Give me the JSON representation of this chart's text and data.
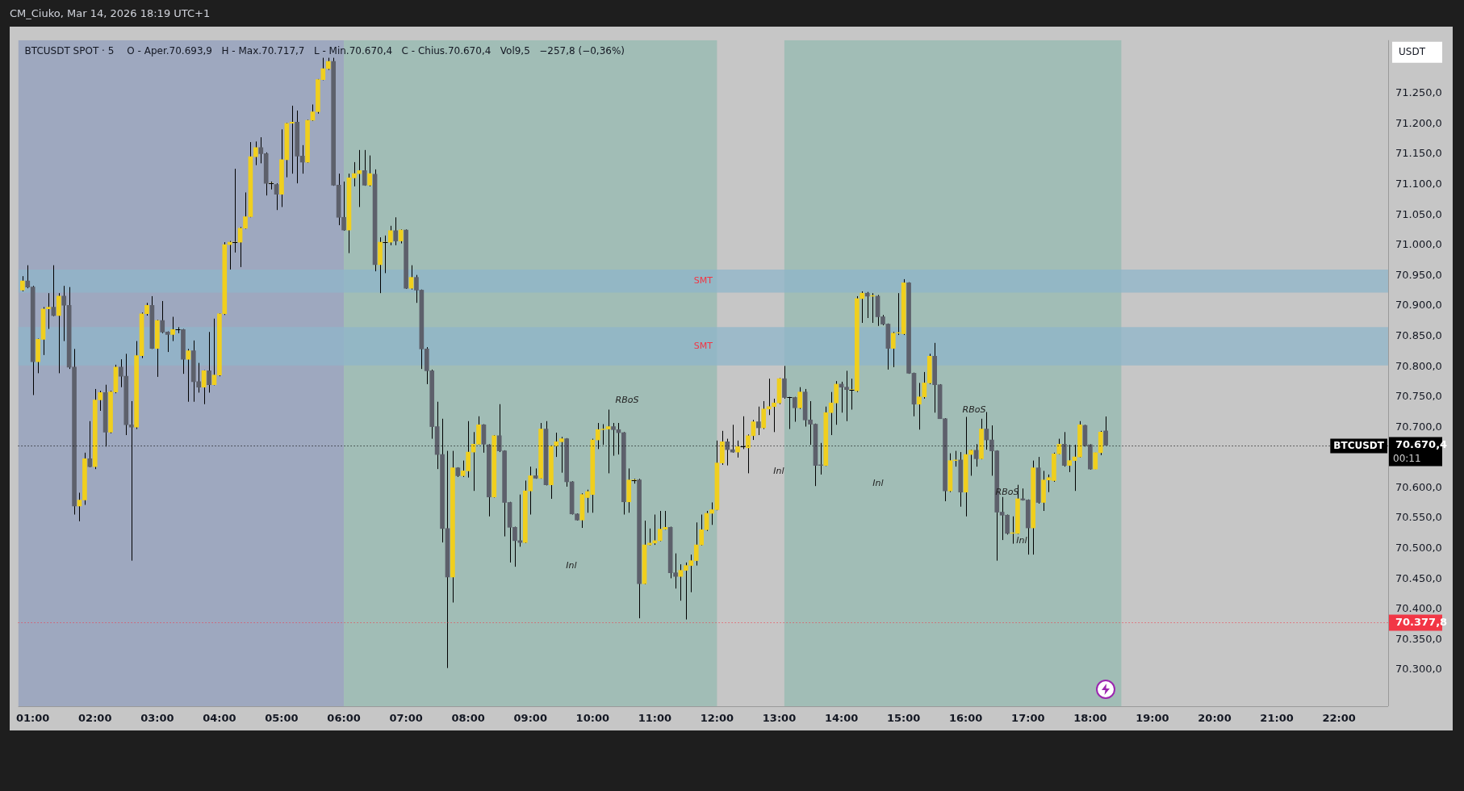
{
  "chart_data": {
    "type": "candlestick",
    "title": "BTCUSDT SPOT · 5",
    "subtitle": "O - Aper.70.693,9   H - Max.70.717,7   L - Min.70.670,4   C - Chius.70.670,4   Vol9,5   −257,8 (−0,36%)",
    "annotations": [
      "CM_Ciuko, Mar 14, 2026 18:19 UTC+1",
      "USDT",
      "00:11",
      "RBoS",
      "RBoS",
      "RBoS",
      "Inl",
      "Inl",
      "Inl",
      "Inl"
    ],
    "colors": [
      "#f0cf1e",
      "#5d606b",
      "#5d606b",
      "#f0cf1e",
      "#f0cf1e",
      "#f0cf1e",
      "#5d606b",
      "#f0cf1e",
      "#5d606b",
      "#5d606b",
      "#5d606b",
      "#f0cf1e",
      "#f0cf1e",
      "#5d606b",
      "#f0cf1e",
      "#f0cf1e",
      "#5d606b",
      "#f0cf1e",
      "#f0cf1e",
      "#5d606b",
      "#5d606b",
      "#5d606b",
      "#f0cf1e",
      "#f0cf1e",
      "#f0cf1e",
      "#5d606b",
      "#f0cf1e",
      "#5d606b",
      "#5d606b",
      "#f0cf1e",
      "#f0cf1e",
      "#5d606b",
      "#f0cf1e",
      "#5d606b",
      "#5d606b",
      "#f0cf1e",
      "#5d606b",
      "#f0cf1e",
      "#f0cf1e",
      "#f0cf1e",
      "#f0cf1e",
      "#f0cf1e",
      "#f0cf1e",
      "#f0cf1e",
      "#f0cf1e",
      "#f0cf1e",
      "#5d606b",
      "#5d606b",
      "#f0cf1e",
      "#5d606b",
      "#f0cf1e",
      "#f0cf1e",
      "#f0cf1e",
      "#5d606b",
      "#5d606b",
      "#f0cf1e",
      "#f0cf1e",
      "#f0cf1e",
      "#f0cf1e",
      "#f0cf1e",
      "#5d606b",
      "#5d606b",
      "#5d606b",
      "#f0cf1e",
      "#f0cf1e",
      "#f0cf1e",
      "#5d606b",
      "#f0cf1e",
      "#5d606b",
      "#f0cf1e",
      "#f0cf1e",
      "#f0cf1e",
      "#5d606b",
      "#f0cf1e",
      "#5d606b",
      "#f0cf1e",
      "#5d606b",
      "#5d606b",
      "#5d606b",
      "#5d606b",
      "#5d606b",
      "#5d606b",
      "#5d606b",
      "#f0cf1e",
      "#5d606b",
      "#f0cf1e",
      "#f0cf1e",
      "#f0cf1e",
      "#f0cf1e",
      "#5d606b",
      "#5d606b",
      "#f0cf1e",
      "#5d606b",
      "#5d606b",
      "#5d606b",
      "#5d606b",
      "#5d606b",
      "#f0cf1e",
      "#f0cf1e",
      "#5d606b",
      "#f0cf1e",
      "#5d606b",
      "#f0cf1e",
      "#f0cf1e",
      "#f0cf1e",
      "#5d606b",
      "#5d606b",
      "#5d606b",
      "#f0cf1e",
      "#f0cf1e",
      "#f0cf1e",
      "#f0cf1e",
      "#f0cf1e",
      "#f0cf1e",
      "#5d606b",
      "#5d606b",
      "#5d606b",
      "#f0cf1e",
      "#f0cf1e",
      "#5d606b",
      "#f0cf1e",
      "#f0cf1e",
      "#f0cf1e",
      "#f0cf1e",
      "#f0cf1e",
      "#5d606b",
      "#5d606b",
      "#f0cf1e",
      "#f0cf1e",
      "#f0cf1e",
      "#f0cf1e",
      "#f0cf1e",
      "#f0cf1e",
      "#f0cf1e",
      "#f0cf1e",
      "#f0cf1e",
      "#5d606b",
      "#5d606b",
      "#f0cf1e",
      "#f0cf1e",
      "#f0cf1e",
      "#f0cf1e",
      "#5d606b",
      "#f0cf1e",
      "#f0cf1e",
      "#f0cf1e",
      "#f0cf1e",
      "#5d606b",
      "#f0cf1e",
      "#5d606b",
      "#f0cf1e",
      "#5d606b",
      "#5d606b",
      "#5d606b",
      "#5d606b",
      "#f0cf1e",
      "#f0cf1e",
      "#f0cf1e",
      "#5d606b",
      "#5d606b",
      "#f0cf1e",
      "#f0cf1e",
      "#f0cf1e",
      "#5d606b",
      "#f0cf1e",
      "#5d606b",
      "#5d606b",
      "#5d606b",
      "#f0cf1e",
      "#f0cf1e",
      "#f0cf1e",
      "#5d606b",
      "#5d606b",
      "#f0cf1e",
      "#f0cf1e",
      "#f0cf1e",
      "#5d606b",
      "#5d606b",
      "#5d606b",
      "#f0cf1e",
      "#f0cf1e",
      "#5d606b",
      "#f0cf1e",
      "#f0cf1e",
      "#5d606b",
      "#f0cf1e",
      "#5d606b",
      "#5d606b",
      "#5d606b",
      "#5d606b",
      "#5d606b",
      "#f0cf1e",
      "#f0cf1e",
      "#5d606b",
      "#5d606b",
      "#f0cf1e",
      "#5d606b",
      "#f0cf1e",
      "#f0cf1e",
      "#f0cf1e",
      "#f0cf1e",
      "#5d606b",
      "#f0cf1e",
      "#f0cf1e",
      "#f0cf1e",
      "#5d606b",
      "#5d606b",
      "#f0cf1e",
      "#f0cf1e",
      "#5d606b"
    ],
    "x": [
      0.8333,
      0.9167,
      1,
      1.0833,
      1.1667,
      1.25,
      1.3333,
      1.4167,
      1.5,
      1.5833,
      1.6667,
      1.75,
      1.8333,
      1.9167,
      2,
      2.0833,
      2.1667,
      2.25,
      2.3333,
      2.4167,
      2.5,
      2.5833,
      2.6667,
      2.75,
      2.8333,
      2.9167,
      3,
      3.0833,
      3.1667,
      3.25,
      3.3333,
      3.4167,
      3.5,
      3.5833,
      3.6667,
      3.75,
      3.8333,
      3.9167,
      4,
      4.0833,
      4.1667,
      4.25,
      4.3333,
      4.4167,
      4.5,
      4.5833,
      4.6667,
      4.75,
      4.8333,
      4.9167,
      5,
      5.0833,
      5.1667,
      5.25,
      5.3333,
      5.4167,
      5.5,
      5.5833,
      5.6667,
      5.75,
      5.8333,
      5.9167,
      6,
      6.0833,
      6.1667,
      6.25,
      6.3333,
      6.4167,
      6.5,
      6.5833,
      6.6667,
      6.75,
      6.8333,
      6.9167,
      7,
      7.0833,
      7.1667,
      7.25,
      7.3333,
      7.4167,
      7.5,
      7.5833,
      7.6667,
      7.75,
      7.8333,
      7.9167,
      8,
      8.0833,
      8.1667,
      8.25,
      8.3333,
      8.4167,
      8.5,
      8.5833,
      8.6667,
      8.75,
      8.8333,
      8.9167,
      9,
      9.0833,
      9.1667,
      9.25,
      9.3333,
      9.4167,
      9.5,
      9.5833,
      9.6667,
      9.75,
      9.8333,
      9.9167,
      10,
      10.0833,
      10.1667,
      10.25,
      10.3333,
      10.4167,
      10.5,
      10.5833,
      10.6667,
      10.75,
      10.8333,
      10.9167,
      11,
      11.0833,
      11.1667,
      11.25,
      11.3333,
      11.4167,
      11.5,
      11.5833,
      11.6667,
      11.75,
      11.8333,
      11.9167,
      12,
      12.0833,
      12.1667,
      12.25,
      12.3333,
      12.4167,
      12.5,
      12.5833,
      12.6667,
      12.75,
      12.8333,
      12.9167,
      13,
      13.0833,
      13.1667,
      13.25,
      13.3333,
      13.4167,
      13.5,
      13.5833,
      13.6667,
      13.75,
      13.8333,
      13.9167,
      14,
      14.0833,
      14.1667,
      14.25,
      14.3333,
      14.4167,
      14.5,
      14.5833,
      14.6667,
      14.75,
      14.8333,
      14.9167,
      15,
      15.0833,
      15.1667,
      15.25,
      15.3333,
      15.4167,
      15.5,
      15.5833,
      15.6667,
      15.75,
      15.8333,
      15.9167,
      16,
      16.0833,
      16.1667,
      16.25,
      16.3333,
      16.4167,
      16.5,
      16.5833,
      16.6667,
      16.75,
      16.8333,
      16.9167,
      17,
      17.0833,
      17.1667,
      17.25,
      17.3333,
      17.4167,
      17.5,
      17.5833,
      17.6667,
      17.75,
      17.8333,
      17.9167,
      18,
      18.0833,
      18.1667,
      18.25
    ],
    "ohlc": [
      [
        70926,
        70949,
        70924,
        70941
      ],
      [
        70941,
        70967,
        70929,
        70931
      ],
      [
        70931,
        70933,
        70753,
        70808
      ],
      [
        70808,
        70846,
        70789,
        70845
      ],
      [
        70845,
        70898,
        70819,
        70895
      ],
      [
        70895,
        70921,
        70862,
        70898
      ],
      [
        70898,
        70967,
        70883,
        70884
      ],
      [
        70884,
        70921,
        70789,
        70916
      ],
      [
        70916,
        70933,
        70842,
        70901
      ],
      [
        70901,
        70931,
        70796,
        70799
      ],
      [
        70799,
        70829,
        70556,
        70570
      ],
      [
        70570,
        70592,
        70545,
        70580
      ],
      [
        70580,
        70658,
        70572,
        70648
      ],
      [
        70648,
        70710,
        70634,
        70635
      ],
      [
        70635,
        70763,
        70631,
        70745
      ],
      [
        70745,
        70760,
        70727,
        70757
      ],
      [
        70757,
        70770,
        70668,
        70692
      ],
      [
        70692,
        70760,
        70690,
        70758
      ],
      [
        70758,
        70803,
        70756,
        70799
      ],
      [
        70799,
        70812,
        70766,
        70784
      ],
      [
        70784,
        70821,
        70687,
        70704
      ],
      [
        70704,
        70743,
        70480,
        70700
      ],
      [
        70700,
        70842,
        70697,
        70818
      ],
      [
        70818,
        70889,
        70814,
        70887
      ],
      [
        70887,
        70905,
        70884,
        70901
      ],
      [
        70901,
        70916,
        70829,
        70830
      ],
      [
        70830,
        70877,
        70783,
        70876
      ],
      [
        70876,
        70908,
        70855,
        70857
      ],
      [
        70857,
        70858,
        70824,
        70853
      ],
      [
        70853,
        70882,
        70842,
        70861
      ],
      [
        70861,
        70865,
        70855,
        70861
      ],
      [
        70861,
        70862,
        70788,
        70812
      ],
      [
        70812,
        70829,
        70742,
        70826
      ],
      [
        70826,
        70843,
        70742,
        70775
      ],
      [
        70775,
        70806,
        70757,
        70766
      ],
      [
        70766,
        70794,
        70738,
        70793
      ],
      [
        70793,
        70857,
        70757,
        70770
      ],
      [
        70770,
        70879,
        70769,
        70786
      ],
      [
        70786,
        70888,
        70784,
        70887
      ],
      [
        70887,
        71005,
        70885,
        71001
      ],
      [
        71001,
        71007,
        70960,
        71005
      ],
      [
        71005,
        71126,
        70988,
        71005
      ],
      [
        71005,
        71030,
        70964,
        71028
      ],
      [
        71028,
        71087,
        71027,
        71047
      ],
      [
        71047,
        71170,
        71046,
        71146
      ],
      [
        71146,
        71171,
        71132,
        71161
      ],
      [
        71161,
        71178,
        71135,
        71151
      ],
      [
        71151,
        71153,
        71082,
        71102
      ],
      [
        71102,
        71105,
        71092,
        71102
      ],
      [
        71100,
        71102,
        71058,
        71084
      ],
      [
        71084,
        71191,
        71063,
        71141
      ],
      [
        71141,
        71202,
        71112,
        71201
      ],
      [
        71201,
        71230,
        71118,
        71203
      ],
      [
        71203,
        71222,
        71102,
        71147
      ],
      [
        71147,
        71165,
        71118,
        71137
      ],
      [
        71137,
        71207,
        71136,
        71206
      ],
      [
        71206,
        71232,
        71205,
        71220
      ],
      [
        71220,
        71274,
        71217,
        71273
      ],
      [
        71273,
        71309,
        71272,
        71291
      ],
      [
        71291,
        71309,
        71289,
        71303
      ],
      [
        71303,
        71309,
        71098,
        71099
      ],
      [
        71099,
        71118,
        71033,
        71046
      ],
      [
        71046,
        71105,
        71024,
        71025
      ],
      [
        71025,
        71118,
        70987,
        71111
      ],
      [
        71111,
        71137,
        71097,
        71118
      ],
      [
        71118,
        71157,
        71063,
        71123
      ],
      [
        71123,
        71157,
        71098,
        71099
      ],
      [
        71099,
        71148,
        71097,
        71118
      ],
      [
        71117,
        71125,
        70957,
        70968
      ],
      [
        70968,
        71013,
        70921,
        71005
      ],
      [
        71005,
        71016,
        70954,
        71005
      ],
      [
        71005,
        71032,
        71000,
        71024
      ],
      [
        71024,
        71046,
        71000,
        71007
      ],
      [
        71007,
        71026,
        71003,
        71025
      ],
      [
        71025,
        71026,
        70928,
        70929
      ],
      [
        70929,
        70967,
        70927,
        70947
      ],
      [
        70947,
        70951,
        70905,
        70926
      ],
      [
        70926,
        70927,
        70796,
        70829
      ],
      [
        70829,
        70832,
        70771,
        70793
      ],
      [
        70793,
        70795,
        70681,
        70701
      ],
      [
        70701,
        70742,
        70631,
        70655
      ],
      [
        70655,
        70714,
        70510,
        70533
      ],
      [
        70533,
        70661,
        70303,
        70453
      ],
      [
        70453,
        70661,
        70411,
        70633
      ],
      [
        70633,
        70634,
        70618,
        70620
      ],
      [
        70620,
        70645,
        70618,
        70628
      ],
      [
        70628,
        70710,
        70617,
        70659
      ],
      [
        70659,
        70692,
        70595,
        70672
      ],
      [
        70672,
        70718,
        70671,
        70704
      ],
      [
        70704,
        70705,
        70658,
        70672
      ],
      [
        70671,
        70672,
        70553,
        70585
      ],
      [
        70585,
        70687,
        70584,
        70686
      ],
      [
        70686,
        70738,
        70659,
        70661
      ],
      [
        70661,
        70662,
        70520,
        70576
      ],
      [
        70576,
        70577,
        70477,
        70535
      ],
      [
        70535,
        70536,
        70470,
        70513
      ],
      [
        70513,
        70589,
        70503,
        70510
      ],
      [
        70510,
        70612,
        70509,
        70595
      ],
      [
        70595,
        70635,
        70556,
        70620
      ],
      [
        70620,
        70632,
        70615,
        70616
      ],
      [
        70616,
        70707,
        70615,
        70697
      ],
      [
        70697,
        70710,
        70604,
        70605
      ],
      [
        70605,
        70670,
        70582,
        70669
      ],
      [
        70669,
        70691,
        70651,
        70676
      ],
      [
        70676,
        70684,
        70625,
        70681
      ],
      [
        70681,
        70682,
        70602,
        70610
      ],
      [
        70610,
        70611,
        70556,
        70557
      ],
      [
        70557,
        70558,
        70546,
        70547
      ],
      [
        70547,
        70591,
        70534,
        70589
      ],
      [
        70584,
        70597,
        70559,
        70594
      ],
      [
        70589,
        70681,
        70559,
        70679
      ],
      [
        70679,
        70707,
        70664,
        70696
      ],
      [
        70696,
        70705,
        70671,
        70697
      ],
      [
        70697,
        70729,
        70624,
        70701
      ],
      [
        70701,
        70707,
        70653,
        70696
      ],
      [
        70696,
        70707,
        70655,
        70691
      ],
      [
        70691,
        70692,
        70556,
        70577
      ],
      [
        70577,
        70632,
        70559,
        70613
      ],
      [
        70613,
        70615,
        70607,
        70613
      ],
      [
        70613,
        70615,
        70385,
        70442
      ],
      [
        70442,
        70546,
        70441,
        70506
      ],
      [
        70506,
        70533,
        70505,
        70509
      ],
      [
        70509,
        70556,
        70506,
        70513
      ],
      [
        70513,
        70562,
        70512,
        70532
      ],
      [
        70532,
        70562,
        70531,
        70535
      ],
      [
        70535,
        70536,
        70451,
        70460
      ],
      [
        70460,
        70492,
        70434,
        70454
      ],
      [
        70454,
        70474,
        70414,
        70464
      ],
      [
        70464,
        70477,
        70383,
        70472
      ],
      [
        70472,
        70490,
        70428,
        70480
      ],
      [
        70480,
        70543,
        70472,
        70506
      ],
      [
        70506,
        70556,
        70505,
        70531
      ],
      [
        70531,
        70562,
        70529,
        70558
      ],
      [
        70558,
        70576,
        70539,
        70564
      ],
      [
        70564,
        70678,
        70563,
        70641
      ],
      [
        70641,
        70694,
        70638,
        70676
      ],
      [
        70676,
        70681,
        70637,
        70663
      ],
      [
        70663,
        70704,
        70658,
        70659
      ],
      [
        70659,
        70678,
        70650,
        70668
      ],
      [
        70668,
        70718,
        70664,
        70668
      ],
      [
        70666,
        70688,
        70624,
        70686
      ],
      [
        70686,
        70712,
        70679,
        70709
      ],
      [
        70709,
        70734,
        70687,
        70699
      ],
      [
        70699,
        70743,
        70697,
        70730
      ],
      [
        70730,
        70780,
        70720,
        70734
      ],
      [
        70734,
        70747,
        70692,
        70740
      ],
      [
        70740,
        70781,
        70738,
        70780
      ],
      [
        70780,
        70801,
        70747,
        70749
      ],
      [
        70749,
        70750,
        70697,
        70749
      ],
      [
        70749,
        70750,
        70709,
        70732
      ],
      [
        70732,
        70766,
        70730,
        70758
      ],
      [
        70758,
        70763,
        70701,
        70712
      ],
      [
        70712,
        70743,
        70671,
        70705
      ],
      [
        70705,
        70706,
        70603,
        70637
      ],
      [
        70638,
        70674,
        70622,
        70637
      ],
      [
        70637,
        70734,
        70636,
        70724
      ],
      [
        70724,
        70758,
        70687,
        70740
      ],
      [
        70740,
        70776,
        70704,
        70771
      ],
      [
        70771,
        70775,
        70724,
        70766
      ],
      [
        70766,
        70793,
        70710,
        70762
      ],
      [
        70762,
        70780,
        70729,
        70762
      ],
      [
        70760,
        70916,
        70758,
        70912
      ],
      [
        70912,
        70924,
        70872,
        70921
      ],
      [
        70921,
        70923,
        70880,
        70916
      ],
      [
        70916,
        70921,
        70872,
        70917
      ],
      [
        70916,
        70918,
        70867,
        70882
      ],
      [
        70882,
        70885,
        70868,
        70870
      ],
      [
        70870,
        70871,
        70795,
        70830
      ],
      [
        70830,
        70857,
        70799,
        70855
      ],
      [
        70855,
        70921,
        70852,
        70856
      ],
      [
        70854,
        70944,
        70852,
        70938
      ],
      [
        70938,
        70939,
        70788,
        70789
      ],
      [
        70789,
        70790,
        70718,
        70738
      ],
      [
        70738,
        70773,
        70696,
        70750
      ],
      [
        70750,
        70791,
        70747,
        70773
      ],
      [
        70773,
        70821,
        70771,
        70817
      ],
      [
        70817,
        70839,
        70724,
        70770
      ],
      [
        70770,
        70771,
        70714,
        70714
      ],
      [
        70714,
        70715,
        70578,
        70595
      ],
      [
        70595,
        70657,
        70593,
        70645
      ],
      [
        70645,
        70661,
        70635,
        70646
      ],
      [
        70646,
        70659,
        70569,
        70593
      ],
      [
        70593,
        70717,
        70553,
        70655
      ],
      [
        70655,
        70663,
        70620,
        70662
      ],
      [
        70662,
        70672,
        70635,
        70648
      ],
      [
        70648,
        70714,
        70647,
        70697
      ],
      [
        70697,
        70725,
        70663,
        70679
      ],
      [
        70679,
        70703,
        70620,
        70661
      ],
      [
        70661,
        70662,
        70480,
        70560
      ],
      [
        70560,
        70585,
        70514,
        70555
      ],
      [
        70555,
        70556,
        70523,
        70525
      ],
      [
        70525,
        70553,
        70508,
        70526
      ],
      [
        70525,
        70605,
        70524,
        70582
      ],
      [
        70582,
        70599,
        70579,
        70580
      ],
      [
        70580,
        70581,
        70490,
        70534
      ],
      [
        70534,
        70645,
        70490,
        70633
      ],
      [
        70633,
        70651,
        70574,
        70576
      ],
      [
        70576,
        70628,
        70562,
        70613
      ],
      [
        70613,
        70622,
        70593,
        70617
      ],
      [
        70612,
        70658,
        70610,
        70656
      ],
      [
        70656,
        70681,
        70655,
        70672
      ],
      [
        70672,
        70692,
        70635,
        70637
      ],
      [
        70637,
        70671,
        70626,
        70645
      ],
      [
        70645,
        70671,
        70595,
        70651
      ],
      [
        70651,
        70710,
        70650,
        70704
      ],
      [
        70703,
        70704,
        70668,
        70670
      ],
      [
        70671,
        70672,
        70630,
        70631
      ],
      [
        70631,
        70658,
        70631,
        70658
      ],
      [
        70658,
        70694,
        70654,
        70692
      ],
      [
        70693.9,
        70717.7,
        70670.4,
        70670.4
      ]
    ],
    "xlim": [
      0.765,
      22.79
    ],
    "ylim": [
      70240,
      71338
    ],
    "xticks": [
      {
        "value": 1,
        "label": "01:00"
      },
      {
        "value": 2,
        "label": "02:00"
      },
      {
        "value": 3,
        "label": "03:00"
      },
      {
        "value": 4,
        "label": "04:00"
      },
      {
        "value": 5,
        "label": "05:00"
      },
      {
        "value": 6,
        "label": "06:00"
      },
      {
        "value": 7,
        "label": "07:00"
      },
      {
        "value": 8,
        "label": "08:00"
      },
      {
        "value": 9,
        "label": "09:00"
      },
      {
        "value": 10,
        "label": "10:00"
      },
      {
        "value": 11,
        "label": "11:00"
      },
      {
        "value": 12,
        "label": "12:00"
      },
      {
        "value": 13,
        "label": "13:00"
      },
      {
        "value": 14,
        "label": "14:00"
      },
      {
        "value": 15,
        "label": "15:00"
      },
      {
        "value": 16,
        "label": "16:00"
      },
      {
        "value": 17,
        "label": "17:00"
      },
      {
        "value": 18,
        "label": "18:00"
      },
      {
        "value": 19,
        "label": "19:00"
      },
      {
        "value": 20,
        "label": "20:00"
      },
      {
        "value": 21,
        "label": "21:00"
      },
      {
        "value": 22,
        "label": "22:00"
      }
    ],
    "yticks": [
      {
        "value": 70300,
        "label": "70.300,0"
      },
      {
        "value": 70350,
        "label": "70.350,0"
      },
      {
        "value": 70400,
        "label": "70.400,0"
      },
      {
        "value": 70450,
        "label": "70.450,0"
      },
      {
        "value": 70500,
        "label": "70.500,0"
      },
      {
        "value": 70550,
        "label": "70.550,0"
      },
      {
        "value": 70377.8,
        "label": "70.377,8"
      },
      {
        "value": 70600,
        "label": "70.600,0"
      },
      {
        "value": 70670.4,
        "label": "70.670,4"
      },
      {
        "value": 70700,
        "label": "70.700,0"
      },
      {
        "value": 70750,
        "label": "70.750,0"
      },
      {
        "value": 70800,
        "label": "70.800,0"
      },
      {
        "value": 70850,
        "label": "70.850,0"
      },
      {
        "value": 70900,
        "label": "70.900,0"
      },
      {
        "value": 70950,
        "label": "70.950,0"
      },
      {
        "value": 71000,
        "label": "71.000,0"
      },
      {
        "value": 71050,
        "label": "71.050,0"
      },
      {
        "value": 71100,
        "label": "71.100,0"
      },
      {
        "value": 71150,
        "label": "71.150,0"
      },
      {
        "value": 71200,
        "label": "71.200,0"
      },
      {
        "value": 71250,
        "label": "71.250,0"
      }
    ],
    "bands": [
      {
        "axis": "x",
        "from": 0.765,
        "to": 6,
        "color": "#9ea8bf"
      },
      {
        "axis": "x",
        "from": 6,
        "to": 12,
        "color": "#a1bdb6"
      },
      {
        "axis": "x",
        "from": 13.083,
        "to": 18.5,
        "color": "#a1bdb6"
      },
      {
        "axis": "y",
        "from": 70922,
        "to": 70960,
        "label": "SMT",
        "color": "#8fb6c9"
      },
      {
        "axis": "y",
        "from": 70802,
        "to": 70865,
        "label": "SMT",
        "color": "#8fb6c9"
      }
    ],
    "ref_lines": [
      {
        "axis": "y",
        "value": 70670.4,
        "label": "BTCUSDT",
        "color": "#000000",
        "line_style": "dotted"
      },
      {
        "axis": "y",
        "value": 70377.8,
        "color": "#f23645",
        "line_style": "dotted"
      }
    ]
  }
}
